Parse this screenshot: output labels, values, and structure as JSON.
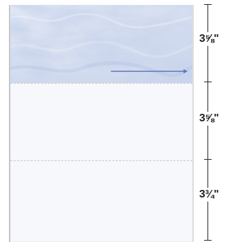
{
  "product": {
    "sections": [
      {
        "name": "top-band",
        "measurement": "3⅝\""
      },
      {
        "name": "middle-band",
        "measurement": "3⅝\""
      },
      {
        "name": "bottom-band",
        "measurement": "3¾\""
      }
    ],
    "colors": {
      "paper": "#f7f8fb",
      "marble_base": "#d9e1f1",
      "marble_accent": "#8ea3cf",
      "arrow": "#5f74b9",
      "perforation": "#c6c6c6",
      "measure": "#222222"
    },
    "icons": {
      "arrow": "right-arrow-icon"
    }
  }
}
